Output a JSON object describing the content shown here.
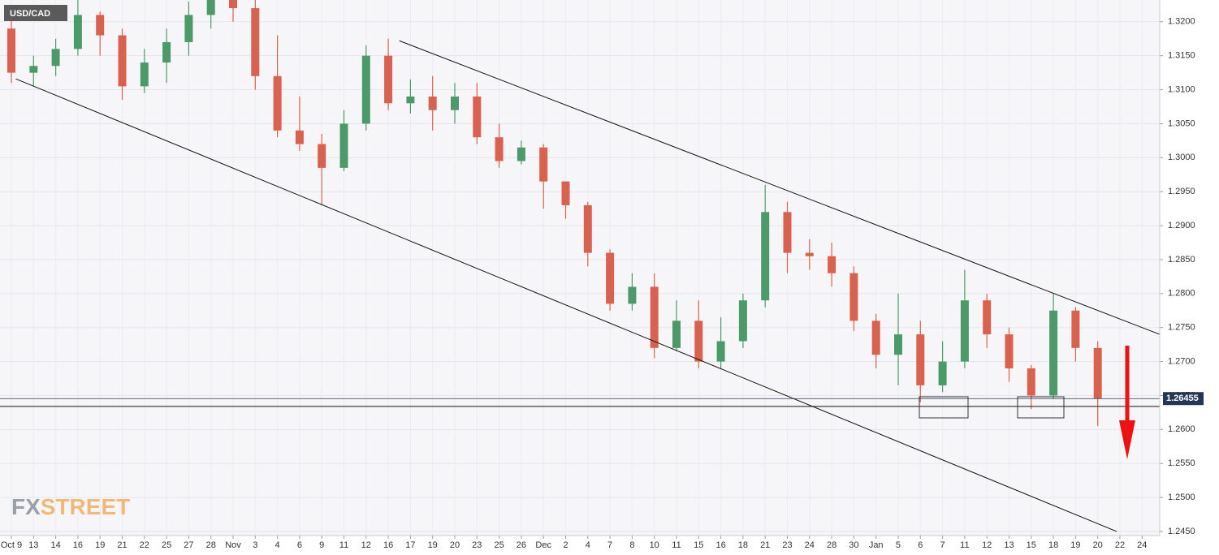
{
  "chart_data": {
    "type": "candlestick",
    "title": "USD/CAD",
    "watermark_left": "FX",
    "watermark_right": "STREET",
    "up_color": "#4c9a6a",
    "down_color": "#d8614f",
    "grid": true,
    "ylim": [
      1.2444,
      1.3232
    ],
    "yticks": [
      {
        "value": 1.245,
        "label": "1.2450"
      },
      {
        "value": 1.25,
        "label": "1.2500"
      },
      {
        "value": 1.255,
        "label": "1.2550"
      },
      {
        "value": 1.26,
        "label": "1.2600"
      },
      {
        "value": 1.265,
        "label": "1.2650"
      },
      {
        "value": 1.27,
        "label": "1.2700"
      },
      {
        "value": 1.275,
        "label": "1.2750"
      },
      {
        "value": 1.28,
        "label": "1.2800"
      },
      {
        "value": 1.285,
        "label": "1.2850"
      },
      {
        "value": 1.29,
        "label": "1.2900"
      },
      {
        "value": 1.295,
        "label": "1.2950"
      },
      {
        "value": 1.3,
        "label": "1.3000"
      },
      {
        "value": 1.305,
        "label": "1.3050"
      },
      {
        "value": 1.31,
        "label": "1.3100"
      },
      {
        "value": 1.315,
        "label": "1.3150"
      },
      {
        "value": 1.32,
        "label": "1.3200"
      }
    ],
    "xlim": [
      -0.513,
      51.795
    ],
    "xticks": [
      {
        "value": 0,
        "label": "Oct 9"
      },
      {
        "value": 1,
        "label": "13"
      },
      {
        "value": 2,
        "label": "14"
      },
      {
        "value": 3,
        "label": "16"
      },
      {
        "value": 4,
        "label": "19"
      },
      {
        "value": 5,
        "label": "21"
      },
      {
        "value": 6,
        "label": "22"
      },
      {
        "value": 7,
        "label": "25"
      },
      {
        "value": 8,
        "label": "27"
      },
      {
        "value": 9,
        "label": "28"
      },
      {
        "value": 10,
        "label": "Nov"
      },
      {
        "value": 11,
        "label": "3"
      },
      {
        "value": 12,
        "label": "4"
      },
      {
        "value": 13,
        "label": "6"
      },
      {
        "value": 14,
        "label": "9"
      },
      {
        "value": 15,
        "label": "11"
      },
      {
        "value": 16,
        "label": "12"
      },
      {
        "value": 17,
        "label": "16"
      },
      {
        "value": 18,
        "label": "17"
      },
      {
        "value": 19,
        "label": "19"
      },
      {
        "value": 20,
        "label": "20"
      },
      {
        "value": 21,
        "label": "23"
      },
      {
        "value": 22,
        "label": "25"
      },
      {
        "value": 23,
        "label": "26"
      },
      {
        "value": 24,
        "label": "Dec"
      },
      {
        "value": 25,
        "label": "2"
      },
      {
        "value": 26,
        "label": "4"
      },
      {
        "value": 27,
        "label": "7"
      },
      {
        "value": 28,
        "label": "8"
      },
      {
        "value": 29,
        "label": "10"
      },
      {
        "value": 30,
        "label": "11"
      },
      {
        "value": 31,
        "label": "15"
      },
      {
        "value": 32,
        "label": "16"
      },
      {
        "value": 33,
        "label": "18"
      },
      {
        "value": 34,
        "label": "21"
      },
      {
        "value": 35,
        "label": "23"
      },
      {
        "value": 36,
        "label": "24"
      },
      {
        "value": 37,
        "label": "28"
      },
      {
        "value": 38,
        "label": "30"
      },
      {
        "value": 39,
        "label": "Jan"
      },
      {
        "value": 40,
        "label": "5"
      },
      {
        "value": 41,
        "label": "6"
      },
      {
        "value": 42,
        "label": "7"
      },
      {
        "value": 43,
        "label": "11"
      },
      {
        "value": 44,
        "label": "12"
      },
      {
        "value": 45,
        "label": "13"
      },
      {
        "value": 46,
        "label": "15"
      },
      {
        "value": 47,
        "label": "18"
      },
      {
        "value": 48,
        "label": "19"
      },
      {
        "value": 49,
        "label": "20"
      },
      {
        "value": 50,
        "label": "22"
      },
      {
        "value": 51,
        "label": "24"
      }
    ],
    "x": [
      0,
      1,
      2,
      3,
      4,
      5,
      6,
      7,
      8,
      9,
      10,
      11,
      12,
      13,
      14,
      15,
      16,
      17,
      18,
      19,
      20,
      21,
      22,
      23,
      24,
      25,
      26,
      27,
      28,
      29,
      30,
      31,
      32,
      33,
      34,
      35,
      36,
      37,
      38,
      39,
      40,
      41,
      42,
      43,
      44,
      45,
      46,
      47,
      48,
      49
    ],
    "open": [
      1.319,
      1.3125,
      1.3135,
      1.316,
      1.321,
      1.318,
      1.3105,
      1.314,
      1.317,
      1.321,
      1.3232,
      1.322,
      1.312,
      1.304,
      1.302,
      1.2985,
      1.305,
      1.315,
      1.308,
      1.309,
      1.307,
      1.309,
      1.303,
      1.2995,
      1.3015,
      1.2965,
      1.293,
      1.286,
      1.2785,
      1.281,
      1.272,
      1.276,
      1.27,
      1.273,
      1.279,
      1.292,
      1.286,
      1.2855,
      1.283,
      1.276,
      1.271,
      1.274,
      1.2665,
      1.27,
      1.279,
      1.274,
      1.269,
      1.265,
      1.2775,
      1.272
    ],
    "high": [
      1.3215,
      1.315,
      1.3175,
      1.3232,
      1.3215,
      1.319,
      1.316,
      1.319,
      1.323,
      1.3232,
      1.3232,
      1.3232,
      1.318,
      1.309,
      1.3035,
      1.307,
      1.3165,
      1.3175,
      1.3115,
      1.312,
      1.311,
      1.311,
      1.305,
      1.3025,
      1.302,
      1.2965,
      1.2935,
      1.2865,
      1.283,
      1.283,
      1.279,
      1.279,
      1.2765,
      1.28,
      1.296,
      1.2935,
      1.288,
      1.2875,
      1.284,
      1.277,
      1.28,
      1.276,
      1.273,
      1.2835,
      1.28,
      1.275,
      1.2695,
      1.28,
      1.278,
      1.273
    ],
    "low": [
      1.311,
      1.3105,
      1.312,
      1.315,
      1.315,
      1.3085,
      1.3095,
      1.311,
      1.315,
      1.319,
      1.32,
      1.31,
      1.303,
      1.301,
      1.293,
      1.298,
      1.304,
      1.307,
      1.3065,
      1.304,
      1.305,
      1.302,
      1.2985,
      1.299,
      1.2925,
      1.291,
      1.284,
      1.2775,
      1.2775,
      1.2705,
      1.2715,
      1.269,
      1.269,
      1.272,
      1.278,
      1.283,
      1.2835,
      1.281,
      1.2745,
      1.269,
      1.2665,
      1.264,
      1.2655,
      1.269,
      1.272,
      1.267,
      1.263,
      1.2645,
      1.27,
      1.2605
    ],
    "close": [
      1.3125,
      1.3135,
      1.316,
      1.321,
      1.318,
      1.3105,
      1.314,
      1.317,
      1.321,
      1.3232,
      1.322,
      1.312,
      1.304,
      1.302,
      1.2985,
      1.305,
      1.315,
      1.308,
      1.309,
      1.307,
      1.309,
      1.303,
      1.2995,
      1.3015,
      1.2965,
      1.293,
      1.286,
      1.2785,
      1.281,
      1.272,
      1.276,
      1.27,
      1.273,
      1.279,
      1.292,
      1.286,
      1.2855,
      1.283,
      1.276,
      1.271,
      1.274,
      1.2665,
      1.27,
      1.279,
      1.274,
      1.269,
      1.265,
      1.2775,
      1.272,
      1.26455
    ],
    "trendlines": [
      {
        "x": [
          17.5,
          51.795
        ],
        "y": [
          1.3172,
          1.274
        ]
      },
      {
        "x": [
          0.2,
          49.85
        ],
        "y": [
          1.3116,
          1.245
        ]
      }
    ],
    "levels": [
      1.2634
    ],
    "last_price": 1.26455
  }
}
